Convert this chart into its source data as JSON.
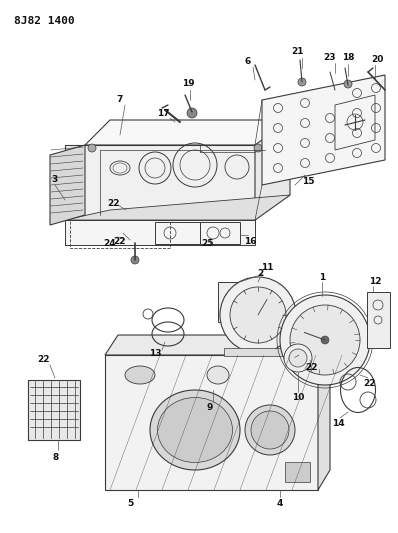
{
  "title": "8J82 1400",
  "bg_color": "#ffffff",
  "line_color": "#3a3a3a",
  "text_color": "#111111",
  "fig_width": 3.98,
  "fig_height": 5.33,
  "dpi": 100
}
